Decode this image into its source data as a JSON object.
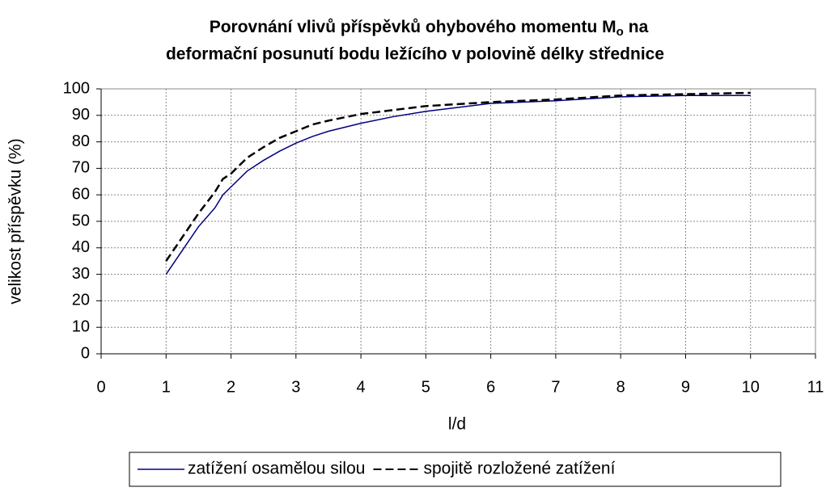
{
  "chart_data": {
    "type": "line",
    "title": [
      "Porovnání vlivů příspěvků ohybového momentu M",
      "o",
      "na",
      "deformační posunutí bodu ležícího v polovině délky střednice"
    ],
    "x_label": "l/d",
    "y_label": "velikost příspěvku  (%)",
    "x": [
      1,
      1.25,
      1.5,
      1.75,
      1.875,
      2,
      2.25,
      2.5,
      2.75,
      3,
      3.25,
      3.5,
      4,
      4.5,
      5,
      6,
      7,
      8,
      9,
      10
    ],
    "series": [
      {
        "name": "zatížení osamělou silou",
        "color": "#000080",
        "dash": "solid",
        "values": [
          30,
          39,
          48,
          55,
          60,
          63,
          69,
          73,
          76.5,
          79.5,
          82,
          84,
          87,
          89.5,
          91.5,
          94.5,
          95.5,
          97,
          97.5,
          97.5
        ]
      },
      {
        "name": "spojitě rozložené zatížení",
        "color": "#000000",
        "dash": "dashed",
        "values": [
          35,
          44,
          53,
          61,
          66,
          68,
          74,
          78,
          81.5,
          84,
          86.5,
          88,
          90.5,
          92,
          93.5,
          95,
          96,
          97.5,
          98,
          98.5
        ]
      }
    ],
    "xlim": [
      0,
      11
    ],
    "xticks": [
      0,
      1,
      2,
      3,
      4,
      5,
      6,
      7,
      8,
      9,
      10,
      11
    ],
    "ylim": [
      0,
      100
    ],
    "yticks": [
      0,
      10,
      20,
      30,
      40,
      50,
      60,
      70,
      80,
      90,
      100
    ],
    "grid": true,
    "legend": "bottom"
  }
}
